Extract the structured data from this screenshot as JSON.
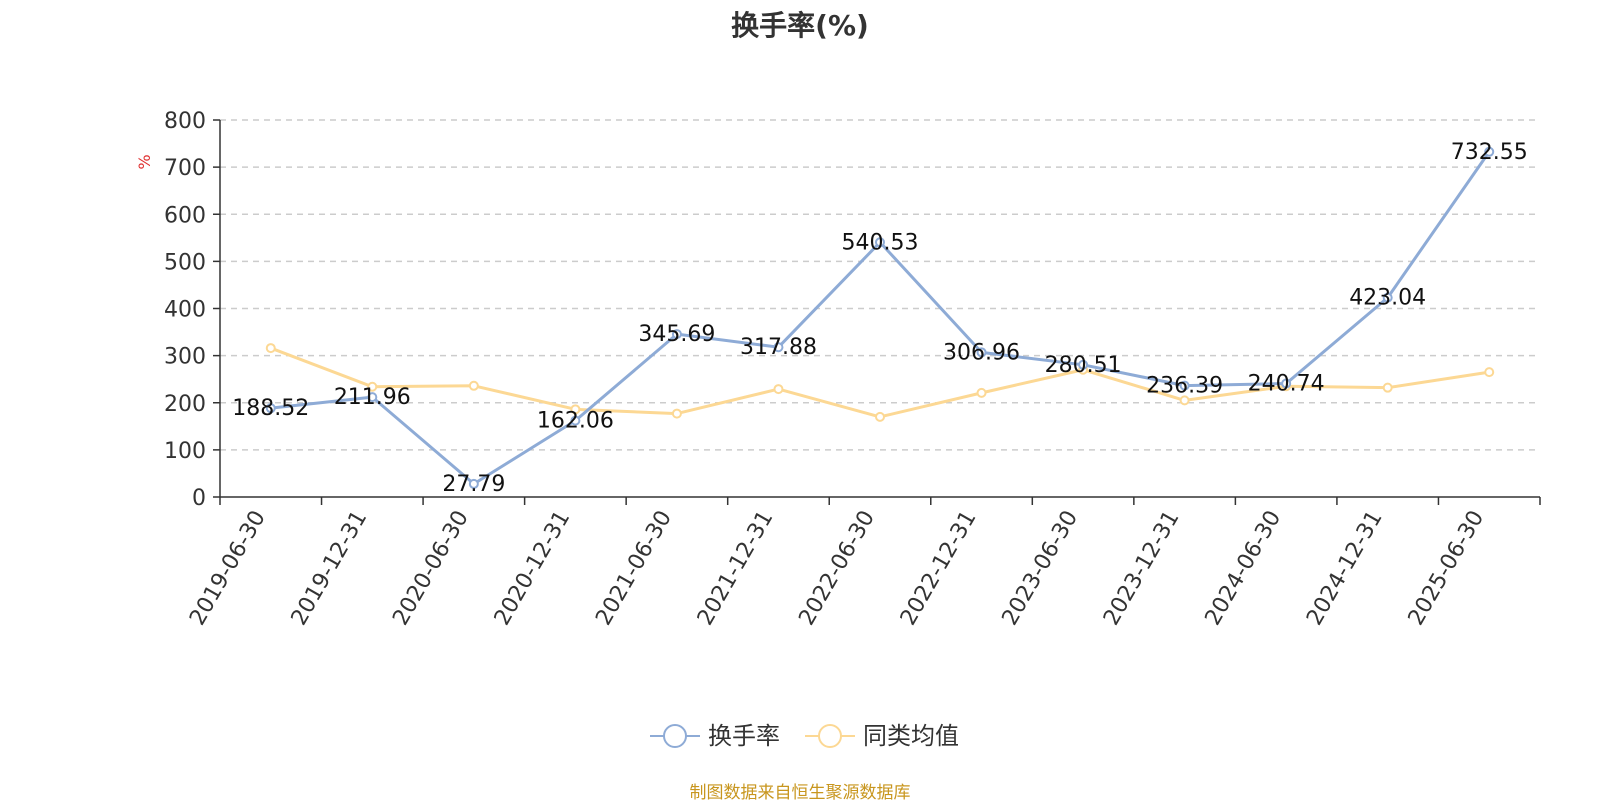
{
  "title": "换手率(%)",
  "source": "制图数据来自恒生聚源数据库",
  "colors": {
    "series1": "#8eabd6",
    "series2": "#fcd894",
    "axis": "#333333",
    "grid": "#cccccc",
    "unit": "#e03030",
    "source": "#c8961e"
  },
  "chart_data": {
    "type": "line",
    "title": "换手率(%)",
    "ylabel": "%",
    "xlabel": "",
    "ylim": [
      0,
      800
    ],
    "yticks": [
      0,
      100,
      200,
      300,
      400,
      500,
      600,
      700,
      800
    ],
    "grid": true,
    "legend_position": "bottom",
    "categories": [
      "2019-06-30",
      "2019-12-31",
      "2020-06-30",
      "2020-12-31",
      "2021-06-30",
      "2021-12-31",
      "2022-06-30",
      "2022-12-31",
      "2023-06-30",
      "2023-12-31",
      "2024-06-30",
      "2024-12-31",
      "2025-06-30"
    ],
    "series": [
      {
        "name": "换手率",
        "values": [
          188.52,
          211.96,
          27.79,
          162.06,
          345.69,
          317.88,
          540.53,
          306.96,
          280.51,
          236.39,
          240.74,
          423.04,
          732.55
        ],
        "labels": [
          "188.52",
          "211.96",
          "27.79",
          "162.06",
          "345.69",
          "317.88",
          "540.53",
          "306.96",
          "280.51",
          "236.39",
          "240.74",
          "423.04",
          "732.55"
        ]
      },
      {
        "name": "同类均值",
        "values": [
          316,
          234,
          236,
          186,
          177,
          229,
          170,
          221,
          270,
          205,
          235,
          232,
          265
        ]
      }
    ]
  }
}
